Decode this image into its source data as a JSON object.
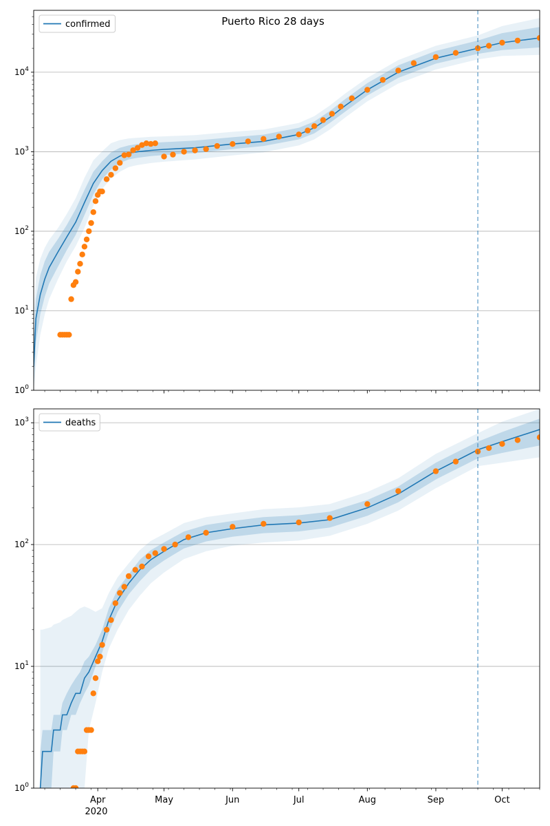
{
  "title": "Puerto Rico 28 days",
  "colors": {
    "model": "#1f77b4",
    "observed": "#ff7f0e",
    "band": "#1f77b4",
    "grid": "#b0b0b0",
    "forecast_line": "#1f77b4"
  },
  "x_ticks": {
    "major": [
      {
        "date": "2020-04-01",
        "label": "Apr"
      },
      {
        "date": "2020-05-01",
        "label": "May"
      },
      {
        "date": "2020-06-01",
        "label": "Jun"
      },
      {
        "date": "2020-07-01",
        "label": "Jul"
      },
      {
        "date": "2020-08-01",
        "label": "Aug"
      },
      {
        "date": "2020-09-01",
        "label": "Sep"
      },
      {
        "date": "2020-10-01",
        "label": "Oct"
      }
    ],
    "year_label": "2020"
  },
  "chart_data": [
    {
      "type": "line",
      "panel": "top",
      "title": "Puerto Rico 28 days",
      "scale": "log",
      "xlim": [
        "2020-03-03",
        "2020-10-18"
      ],
      "ylim": [
        1,
        60000
      ],
      "yticks": [
        {
          "value": 1,
          "base": "10",
          "exp": "0"
        },
        {
          "value": 10,
          "base": "10",
          "exp": "1"
        },
        {
          "value": 100,
          "base": "10",
          "exp": "2"
        },
        {
          "value": 1000,
          "base": "10",
          "exp": "3"
        },
        {
          "value": 10000,
          "base": "10",
          "exp": "4"
        }
      ],
      "grid": "y",
      "legend": {
        "position": "top-left",
        "label": "confirmed"
      },
      "forecast_start": "2020-09-20",
      "model": {
        "name": "confirmed",
        "x": [
          "2020-03-03",
          "2020-03-04",
          "2020-03-06",
          "2020-03-08",
          "2020-03-10",
          "2020-03-14",
          "2020-03-18",
          "2020-03-22",
          "2020-03-26",
          "2020-03-30",
          "2020-04-03",
          "2020-04-07",
          "2020-04-11",
          "2020-04-15",
          "2020-04-19",
          "2020-04-25",
          "2020-05-01",
          "2020-05-15",
          "2020-06-01",
          "2020-06-15",
          "2020-07-01",
          "2020-07-08",
          "2020-07-15",
          "2020-07-22",
          "2020-08-01",
          "2020-08-15",
          "2020-09-01",
          "2020-09-20",
          "2020-10-01",
          "2020-10-18"
        ],
        "y": [
          2,
          8,
          16,
          25,
          35,
          55,
          85,
          130,
          230,
          400,
          580,
          760,
          880,
          960,
          1000,
          1040,
          1070,
          1120,
          1250,
          1350,
          1650,
          2000,
          2700,
          3800,
          6000,
          10000,
          15000,
          20000,
          23500,
          27000
        ],
        "bands": [
          {
            "lower": [
              1,
              4,
              9,
              15,
              22,
              36,
              58,
              90,
              160,
              290,
              450,
              600,
              720,
              800,
              840,
              880,
              910,
              960,
              1080,
              1180,
              1430,
              1700,
              2300,
              3200,
              5100,
              8500,
              12800,
              17000,
              19000,
              20500
            ],
            "upper": [
              4,
              14,
              28,
              42,
              55,
              80,
              120,
              190,
              330,
              560,
              760,
              980,
              1120,
              1200,
              1250,
              1290,
              1320,
              1380,
              1520,
              1640,
              2000,
              2400,
              3250,
              4600,
              7300,
              12200,
              18500,
              25000,
              31000,
              37000
            ]
          },
          {
            "lower": [
              1,
              2,
              5,
              9,
              14,
              25,
              42,
              65,
              110,
              210,
              340,
              460,
              560,
              640,
              680,
              720,
              750,
              800,
              900,
              980,
              1200,
              1430,
              1900,
              2700,
              4300,
              7200,
              10800,
              14500,
              16000,
              16500
            ],
            "upper": [
              8,
              26,
              45,
              62,
              78,
              110,
              165,
              260,
              470,
              780,
              1010,
              1280,
              1400,
              1470,
              1500,
              1540,
              1560,
              1620,
              1780,
              1900,
              2300,
              2800,
              3800,
              5400,
              8500,
              14200,
              21500,
              29000,
              38000,
              48000
            ]
          }
        ]
      },
      "observed": {
        "x": [
          "2020-03-15",
          "2020-03-16",
          "2020-03-17",
          "2020-03-18",
          "2020-03-19",
          "2020-03-20",
          "2020-03-21",
          "2020-03-22",
          "2020-03-23",
          "2020-03-24",
          "2020-03-25",
          "2020-03-26",
          "2020-03-27",
          "2020-03-28",
          "2020-03-29",
          "2020-03-30",
          "2020-03-31",
          "2020-04-01",
          "2020-04-02",
          "2020-04-03",
          "2020-04-05",
          "2020-04-07",
          "2020-04-09",
          "2020-04-11",
          "2020-04-13",
          "2020-04-15",
          "2020-04-17",
          "2020-04-19",
          "2020-04-21",
          "2020-04-23",
          "2020-04-25",
          "2020-04-27",
          "2020-05-01",
          "2020-05-05",
          "2020-05-10",
          "2020-05-15",
          "2020-05-20",
          "2020-05-25",
          "2020-06-01",
          "2020-06-08",
          "2020-06-15",
          "2020-06-22",
          "2020-07-01",
          "2020-07-05",
          "2020-07-08",
          "2020-07-12",
          "2020-07-16",
          "2020-07-20",
          "2020-07-25",
          "2020-08-01",
          "2020-08-08",
          "2020-08-15",
          "2020-08-22",
          "2020-09-01",
          "2020-09-10",
          "2020-09-20",
          "2020-09-25",
          "2020-10-01",
          "2020-10-08",
          "2020-10-18"
        ],
        "y": [
          5,
          5,
          5,
          5,
          5,
          14,
          21,
          23,
          31,
          39,
          51,
          64,
          79,
          100,
          127,
          174,
          239,
          286,
          316,
          316,
          452,
          513,
          620,
          725,
          903,
          923,
          1043,
          1118,
          1213,
          1276,
          1252,
          1276,
          870,
          920,
          1000,
          1040,
          1080,
          1180,
          1250,
          1350,
          1450,
          1550,
          1650,
          1850,
          2100,
          2500,
          3000,
          3700,
          4700,
          6000,
          8000,
          10500,
          13000,
          15500,
          17500,
          20000,
          21500,
          23500,
          25000,
          27000
        ]
      }
    },
    {
      "type": "line",
      "panel": "bottom",
      "scale": "log",
      "xlim": [
        "2020-03-03",
        "2020-10-18"
      ],
      "ylim": [
        1,
        1300
      ],
      "yticks": [
        {
          "value": 1,
          "base": "10",
          "exp": "0"
        },
        {
          "value": 10,
          "base": "10",
          "exp": "1"
        },
        {
          "value": 100,
          "base": "10",
          "exp": "2"
        },
        {
          "value": 1000,
          "base": "10",
          "exp": "3"
        }
      ],
      "grid": "y",
      "legend": {
        "position": "top-left",
        "label": "deaths"
      },
      "forecast_start": "2020-09-20",
      "model": {
        "name": "deaths",
        "x": [
          "2020-03-06",
          "2020-03-07",
          "2020-03-11",
          "2020-03-12",
          "2020-03-15",
          "2020-03-16",
          "2020-03-18",
          "2020-03-20",
          "2020-03-22",
          "2020-03-24",
          "2020-03-26",
          "2020-03-28",
          "2020-03-31",
          "2020-04-03",
          "2020-04-06",
          "2020-04-10",
          "2020-04-15",
          "2020-04-20",
          "2020-04-25",
          "2020-05-01",
          "2020-05-10",
          "2020-05-20",
          "2020-06-01",
          "2020-06-15",
          "2020-07-01",
          "2020-07-15",
          "2020-08-01",
          "2020-08-15",
          "2020-09-01",
          "2020-09-20",
          "2020-10-01",
          "2020-10-18"
        ],
        "y": [
          1,
          2,
          2,
          3,
          3,
          4,
          4,
          5,
          6,
          6,
          8,
          9,
          12,
          16,
          24,
          35,
          48,
          62,
          75,
          88,
          110,
          125,
          135,
          145,
          150,
          160,
          200,
          260,
          400,
          600,
          700,
          880
        ],
        "bands": [
          {
            "lower": [
              1,
              1,
              1,
              2,
              2,
              3,
              3,
              4,
              4,
              5,
              6,
              7,
              10,
              13,
              19,
              28,
              39,
              50,
              62,
              74,
              93,
              106,
              116,
              124,
              128,
              138,
              172,
              222,
              342,
              510,
              565,
              650
            ],
            "upper": [
              2,
              3,
              3,
              4,
              4,
              5,
              6,
              7,
              8,
              9,
              11,
              12,
              15,
              20,
              30,
              43,
              57,
              75,
              90,
              104,
              128,
              145,
              156,
              168,
              174,
              186,
              232,
              300,
              470,
              700,
              840,
              1080
            ]
          },
          {
            "lower": [
              1,
              1,
              1,
              1,
              1,
              1,
              1,
              1,
              1,
              1,
              1,
              3,
              5,
              9,
              14,
              20,
              29,
              38,
              48,
              59,
              76,
              88,
              98,
              104,
              108,
              118,
              148,
              190,
              290,
              440,
              470,
              520
            ],
            "upper": [
              20,
              20,
              21,
              22,
              23,
              24,
              25,
              26,
              28,
              30,
              31,
              30,
              28,
              30,
              40,
              54,
              70,
              90,
              107,
              122,
              150,
              168,
              180,
              195,
              202,
              215,
              270,
              350,
              555,
              820,
              1020,
              1300
            ]
          }
        ]
      },
      "observed": {
        "x": [
          "2020-03-21",
          "2020-03-22",
          "2020-03-23",
          "2020-03-24",
          "2020-03-25",
          "2020-03-26",
          "2020-03-27",
          "2020-03-28",
          "2020-03-29",
          "2020-03-30",
          "2020-03-31",
          "2020-04-01",
          "2020-04-02",
          "2020-04-03",
          "2020-04-05",
          "2020-04-07",
          "2020-04-09",
          "2020-04-11",
          "2020-04-13",
          "2020-04-15",
          "2020-04-18",
          "2020-04-21",
          "2020-04-24",
          "2020-04-27",
          "2020-05-01",
          "2020-05-06",
          "2020-05-12",
          "2020-05-20",
          "2020-06-01",
          "2020-06-15",
          "2020-07-01",
          "2020-07-15",
          "2020-08-01",
          "2020-08-15",
          "2020-09-01",
          "2020-09-10",
          "2020-09-20",
          "2020-09-25",
          "2020-10-01",
          "2020-10-08",
          "2020-10-18"
        ],
        "y": [
          1,
          1,
          2,
          2,
          2,
          2,
          3,
          3,
          3,
          6,
          8,
          11,
          12,
          15,
          20,
          24,
          33,
          40,
          45,
          55,
          62,
          66,
          80,
          85,
          92,
          100,
          115,
          125,
          140,
          148,
          152,
          165,
          215,
          275,
          400,
          480,
          580,
          620,
          670,
          720,
          760
        ]
      }
    }
  ]
}
